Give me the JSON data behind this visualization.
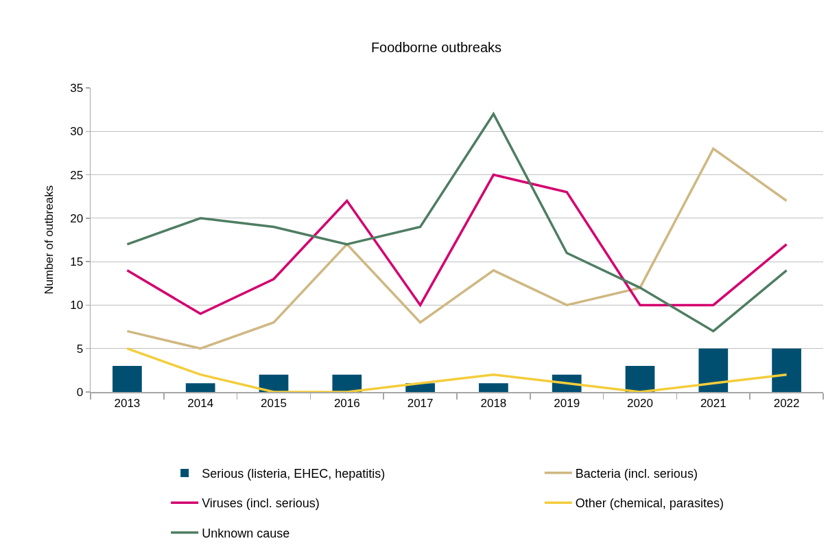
{
  "chart_data": {
    "type": "line",
    "title": "Foodborne outbreaks",
    "ylabel": "Number of outbreaks",
    "categories": [
      "2013",
      "2014",
      "2015",
      "2016",
      "2017",
      "2018",
      "2019",
      "2020",
      "2021",
      "2022"
    ],
    "series": [
      {
        "name": "Serious (listeria, EHEC, hepatitis)",
        "type": "bar",
        "color": "#004f71",
        "values": [
          3,
          1,
          2,
          2,
          1,
          1,
          2,
          3,
          5,
          5
        ]
      },
      {
        "name": "Bacteria (incl. serious)",
        "color": "#cfb883",
        "values": [
          7,
          5,
          8,
          17,
          8,
          14,
          10,
          12,
          28,
          22
        ]
      },
      {
        "name": "Viruses (incl. serious)",
        "color": "#d3006f",
        "values": [
          14,
          9,
          13,
          22,
          10,
          25,
          23,
          10,
          10,
          17
        ]
      },
      {
        "name": "Other (chemical, parasites)",
        "color": "#f3cd3c",
        "values": [
          5,
          2,
          0,
          0,
          1,
          2,
          1,
          0,
          1,
          2
        ]
      },
      {
        "name": "Unknown cause",
        "color": "#4e7d62",
        "values": [
          17,
          20,
          19,
          17,
          19,
          32,
          16,
          12,
          7,
          14
        ]
      }
    ],
    "ylim": [
      0,
      35
    ],
    "yticks": [
      0,
      5,
      10,
      15,
      20,
      25,
      30,
      35
    ],
    "grid": "y",
    "legend": "bottom",
    "marker": "none",
    "line_style": "solid"
  }
}
